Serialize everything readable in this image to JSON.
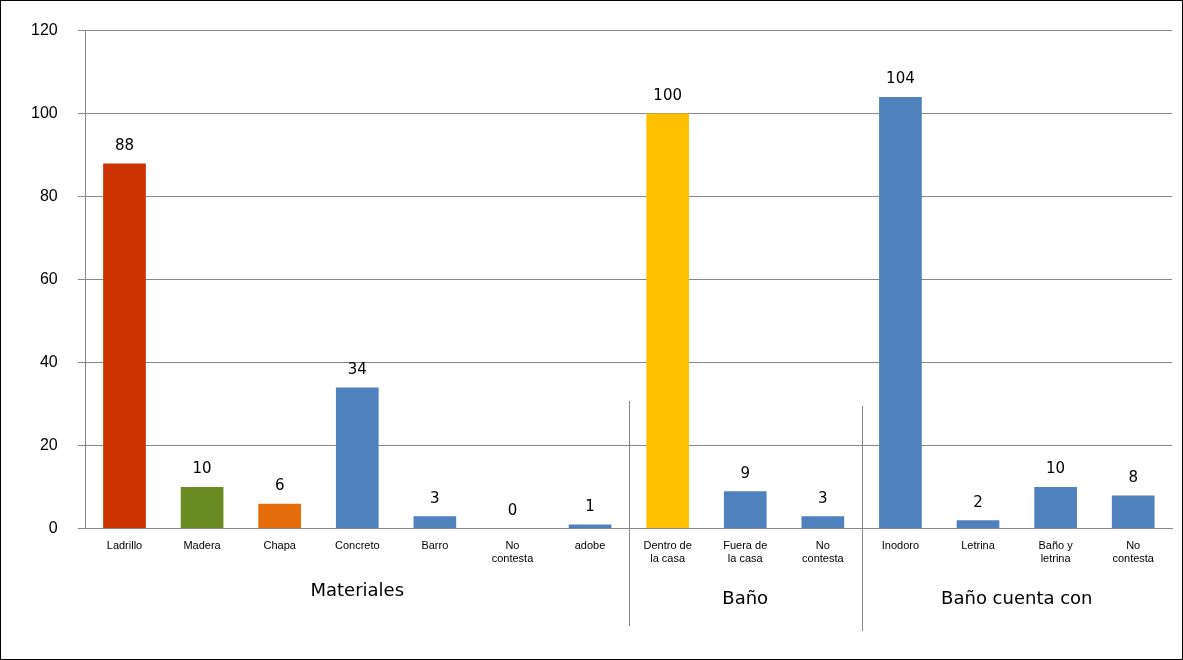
{
  "chart_data": {
    "type": "bar",
    "categories": [
      "Ladrillo",
      "Madera",
      "Chapa",
      "Concreto",
      "Barro",
      "No contesta",
      "adobe",
      "Dentro de la casa",
      "Fuera de la casa",
      "No contesta",
      "Inodoro",
      "Letrina",
      "Baño y letrina",
      "No contesta"
    ],
    "values": [
      88,
      10,
      6,
      34,
      3,
      0,
      1,
      100,
      9,
      3,
      104,
      2,
      10,
      8
    ],
    "colors": [
      "#cc3300",
      "#6a8a22",
      "#e46c0a",
      "#4f81bd",
      "#4f81bd",
      "#4f81bd",
      "#4f81bd",
      "#ffc000",
      "#4f81bd",
      "#4f81bd",
      "#4f81bd",
      "#4f81bd",
      "#4f81bd",
      "#4f81bd"
    ],
    "ylim": [
      0,
      120
    ],
    "yticks": [
      0,
      20,
      40,
      60,
      80,
      100,
      120
    ],
    "grid": "y",
    "legend": false,
    "data_labels": true,
    "annotations": [
      "Materiales",
      "Baño",
      "Baño cuenta con"
    ]
  }
}
